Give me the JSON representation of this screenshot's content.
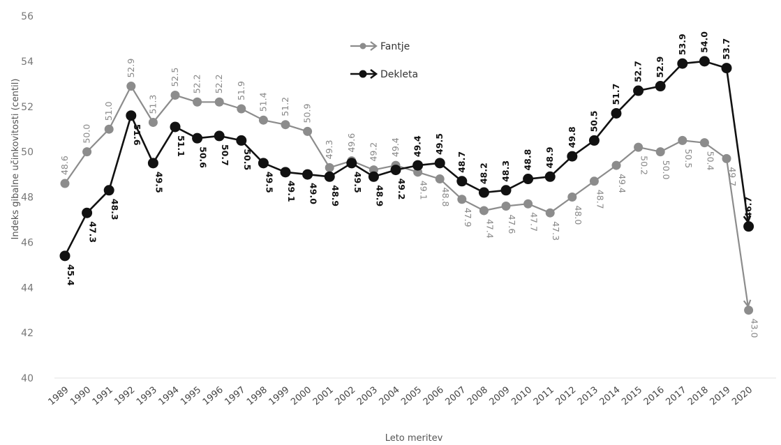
{
  "chart_data": {
    "type": "line",
    "xlabel": "Leto meritev",
    "ylabel": "Indeks gibalne učinkovitosti (centil)",
    "ylim": [
      40,
      56
    ],
    "yticks": [
      "40",
      "42",
      "44",
      "46",
      "48",
      "50",
      "52",
      "54",
      "56"
    ],
    "categories": [
      "1989",
      "1990",
      "1991",
      "1992",
      "1993",
      "1994",
      "1995",
      "1996",
      "1997",
      "1998",
      "1999",
      "2000",
      "2001",
      "2002",
      "2003",
      "2004",
      "2005",
      "2006",
      "2007",
      "2008",
      "2009",
      "2010",
      "2011",
      "2012",
      "2013",
      "2014",
      "2015",
      "2016",
      "2017",
      "2018",
      "2019",
      "2020"
    ],
    "series": [
      {
        "name": "Fantje",
        "color": "#8c8c8c",
        "values": [
          48.6,
          50.0,
          51.0,
          52.9,
          51.3,
          52.5,
          52.2,
          52.2,
          51.9,
          51.4,
          51.2,
          50.9,
          49.3,
          49.6,
          49.2,
          49.4,
          49.1,
          48.8,
          47.9,
          47.4,
          47.6,
          47.7,
          47.3,
          48.0,
          48.7,
          49.4,
          50.2,
          50.0,
          50.5,
          50.4,
          49.7,
          43.0
        ],
        "labels": [
          "48.6",
          "50.0",
          "51.0",
          "52.9",
          "51.3",
          "52.5",
          "52.2",
          "52.2",
          "51.9",
          "51.4",
          "51.2",
          "50.9",
          "49.3",
          "49.6",
          "49.2",
          "49.4",
          "49.1",
          "48.8",
          "47.9",
          "47.4",
          "47.6",
          "47.7",
          "47.3",
          "48.0",
          "48.7",
          "49.4",
          "50.2",
          "50.0",
          "50.5",
          "50.4",
          "49.7",
          "43.0"
        ]
      },
      {
        "name": "Dekleta",
        "color": "#111111",
        "values": [
          45.4,
          47.3,
          48.3,
          51.6,
          49.5,
          51.1,
          50.6,
          50.7,
          50.5,
          49.5,
          49.1,
          49.0,
          48.9,
          49.5,
          48.9,
          49.2,
          49.4,
          49.5,
          48.7,
          48.2,
          48.3,
          48.8,
          48.9,
          49.8,
          50.5,
          51.7,
          52.7,
          52.9,
          53.9,
          54.0,
          53.7,
          46.7
        ],
        "labels": [
          "45.4",
          "47.3",
          "48.3",
          "51.6",
          "49.5",
          "51.1",
          "50.6",
          "50.7",
          "50.5",
          "49.5",
          "49.1",
          "49.0",
          "48.9",
          "49.5",
          "48.9",
          "49.2",
          "49.4",
          "49.5",
          "48.7",
          "48.2",
          "48.3",
          "48.8",
          "48.9",
          "49.8",
          "50.5",
          "51.7",
          "52.7",
          "52.9",
          "53.9",
          "54.0",
          "53.7",
          "46.7"
        ]
      }
    ],
    "legend_position": "top-center",
    "grid": false
  }
}
